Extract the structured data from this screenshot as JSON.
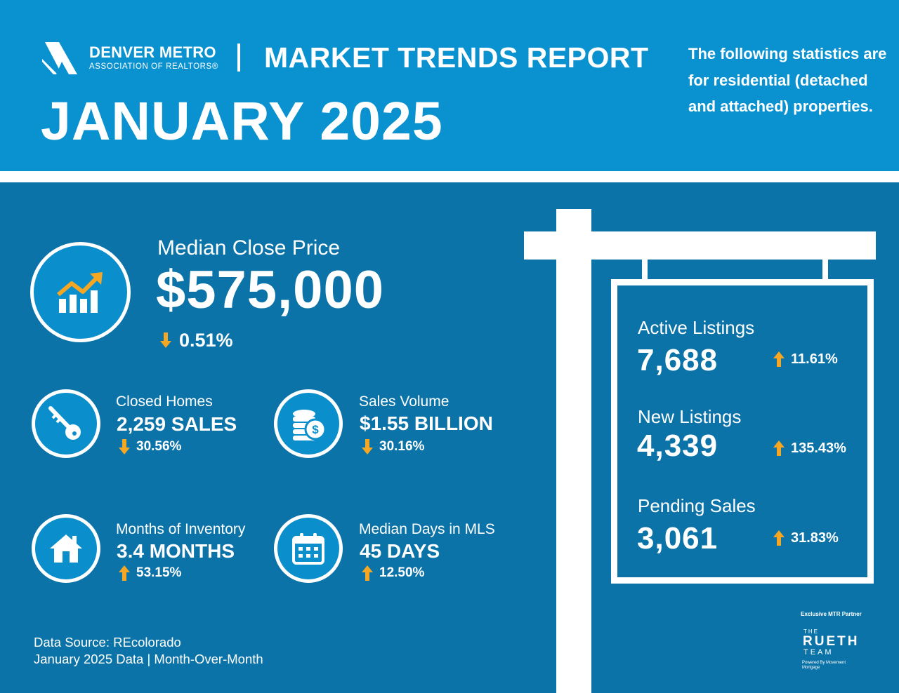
{
  "header": {
    "org_name": "DENVER METRO",
    "org_subtitle": "ASSOCIATION OF REALTORS®",
    "report_title": "MARKET TRENDS REPORT",
    "month_title": "JANUARY 2025",
    "intro_text": "The following statistics are for residential (detached and attached) properties."
  },
  "median_close_price": {
    "label": "Median Close Price",
    "value": "$575,000",
    "change": "0.51%",
    "direction": "down",
    "icon": "trend-chart-icon"
  },
  "stats": [
    {
      "label": "Closed Homes",
      "value": "2,259 SALES",
      "change": "30.56%",
      "direction": "down",
      "icon": "key-icon"
    },
    {
      "label": "Sales Volume",
      "value": "$1.55 BILLION",
      "change": "30.16%",
      "direction": "down",
      "icon": "coins-icon"
    },
    {
      "label": "Months of Inventory",
      "value": "3.4 MONTHS",
      "change": "53.15%",
      "direction": "up",
      "icon": "house-icon"
    },
    {
      "label": "Median Days in MLS",
      "value": "45 DAYS",
      "change": "12.50%",
      "direction": "up",
      "icon": "calendar-icon"
    }
  ],
  "sign": {
    "items": [
      {
        "label": "Active Listings",
        "value": "7,688",
        "change": "11.61%",
        "direction": "up"
      },
      {
        "label": "New Listings",
        "value": "4,339",
        "change": "135.43%",
        "direction": "up"
      },
      {
        "label": "Pending Sales",
        "value": "3,061",
        "change": "31.83%",
        "direction": "up"
      }
    ]
  },
  "footer": {
    "source_line1": "Data Source: REcolorado",
    "source_line2": "January 2025 Data | Month-Over-Month"
  },
  "partner": {
    "label": "Exclusive MTR Partner",
    "the": "THE",
    "name": "RUETH",
    "team": "TEAM",
    "powered": "Powered By Movement Mortgage"
  },
  "colors": {
    "header_bg": "#0a92d0",
    "main_bg": "#0b73a8",
    "icon_circle_bg": "#0a8fcc",
    "arrow": "#f5a623",
    "text": "#ffffff"
  }
}
